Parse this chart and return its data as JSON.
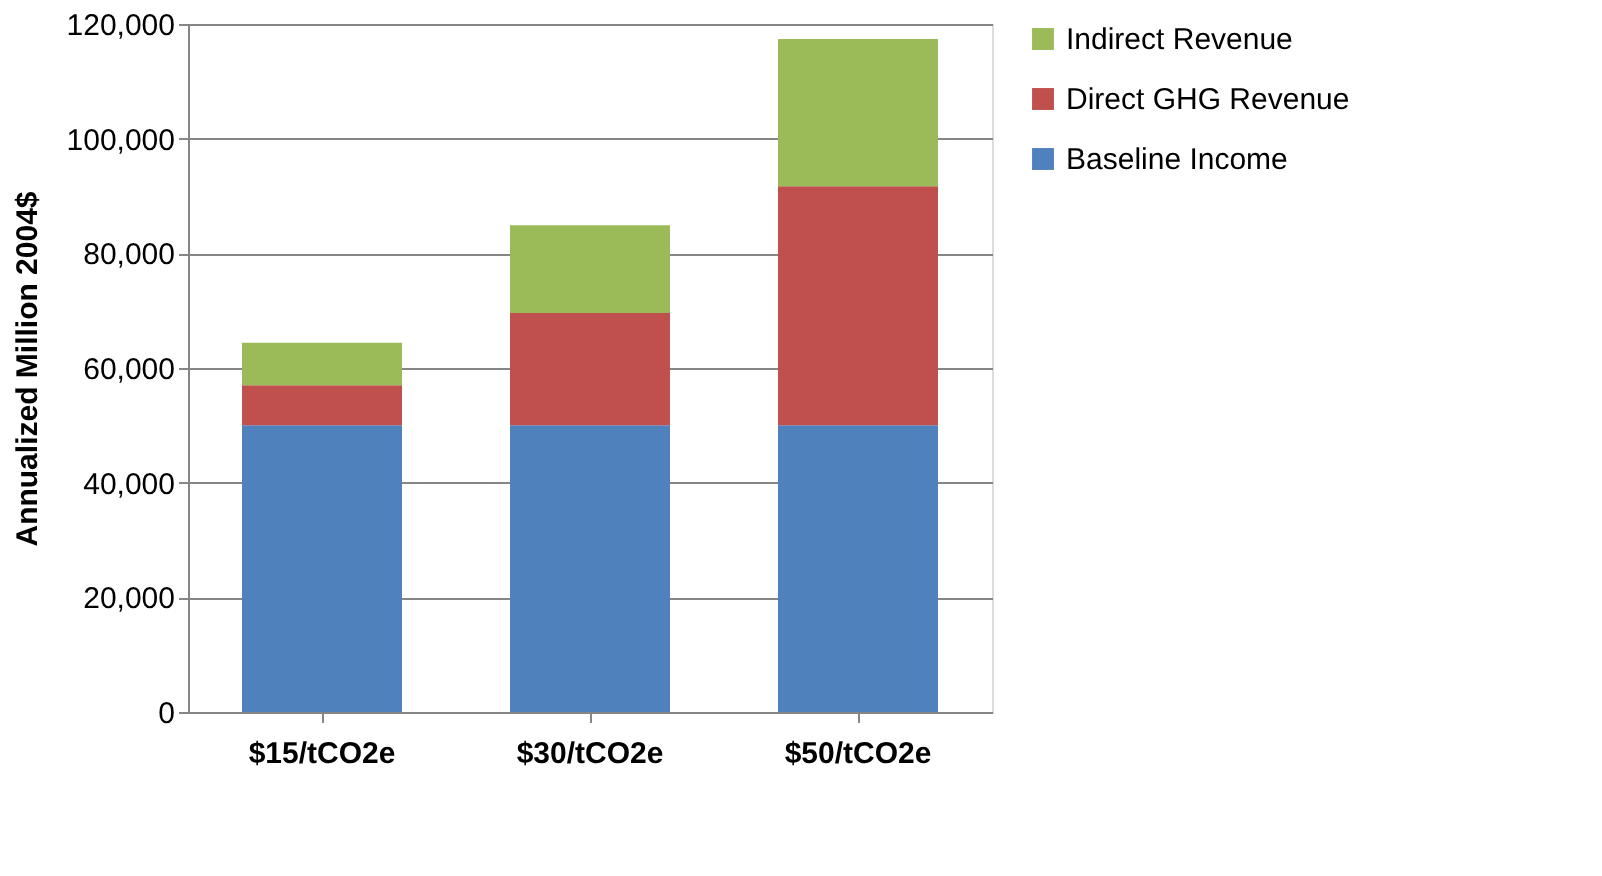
{
  "chart_data": {
    "type": "bar",
    "stacked": true,
    "ylabel": "Annualized Million 2004$",
    "categories": [
      "$15/tCO2e",
      "$30/tCO2e",
      "$50/tCO2e"
    ],
    "series": [
      {
        "name": "Baseline Income",
        "color": "#4f81bd",
        "values": [
          50000,
          50000,
          50000
        ]
      },
      {
        "name": "Direct GHG Revenue",
        "color": "#c0504d",
        "values": [
          7000,
          19600,
          41700
        ]
      },
      {
        "name": "Indirect Revenue",
        "color": "#9bbb59",
        "values": [
          7400,
          15300,
          25700
        ]
      }
    ],
    "ylim": [
      0,
      120000
    ],
    "yticks": [
      {
        "value": 0,
        "label": "0"
      },
      {
        "value": 20000,
        "label": "20,000"
      },
      {
        "value": 40000,
        "label": "40,000"
      },
      {
        "value": 60000,
        "label": "60,000"
      },
      {
        "value": 80000,
        "label": "80,000"
      },
      {
        "value": 100000,
        "label": "100,000"
      },
      {
        "value": 120000,
        "label": "120,000"
      }
    ],
    "grid": "y",
    "legend": "right"
  }
}
